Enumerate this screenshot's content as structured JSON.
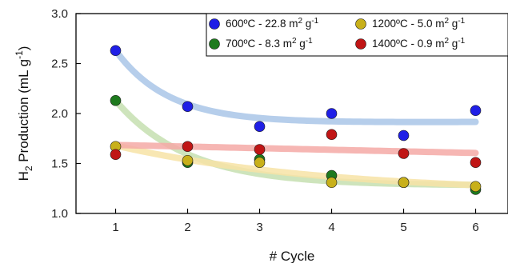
{
  "chart_data": {
    "type": "scatter",
    "xlabel": "# Cycle",
    "ylabel": {
      "main": "H",
      "sub": "2",
      "rest": " Production (mL g",
      "sup": "-1",
      "close": ")"
    },
    "xlim": [
      0.45,
      6.45
    ],
    "ylim": [
      1.0,
      3.0
    ],
    "xticks": [
      "1",
      "2",
      "3",
      "4",
      "5",
      "6"
    ],
    "yticks": [
      "1.0",
      "1.5",
      "2.0",
      "2.5",
      "3.0"
    ],
    "legend_position": "top-right",
    "grid": false,
    "series": [
      {
        "name": "600ºC - 22.8 m² g⁻¹",
        "label_main": "600ºC - 22.8 m",
        "label_sup1": "2",
        "label_mid": " g",
        "label_sup2": "-1",
        "color": "#1f1fe6",
        "fit_color": "#a9c6e8",
        "x": [
          1,
          2,
          3,
          4,
          5,
          6
        ],
        "y": [
          2.63,
          2.07,
          1.87,
          2.0,
          1.78,
          2.03
        ],
        "fit": {
          "a": 1.9,
          "b": 0.73,
          "k": 1.35,
          "m": 0.003
        }
      },
      {
        "name": "700ºC - 8.3 m² g⁻¹",
        "label_main": "700ºC - 8.3 m",
        "label_sup1": "2",
        "label_mid": " g",
        "label_sup2": "-1",
        "color": "#1e7a1e",
        "fit_color": "#c6dfb0",
        "x": [
          1,
          2,
          3,
          4,
          5,
          6
        ],
        "y": [
          2.13,
          1.51,
          1.54,
          1.38,
          1.31,
          1.24
        ],
        "fit": {
          "a": 1.28,
          "b": 0.85,
          "k": 1.0,
          "m": 0.0
        }
      },
      {
        "name": "1200ºC - 5.0 m² g⁻¹",
        "label_main": "1200ºC - 5.0 m",
        "label_sup1": "2",
        "label_mid": " g",
        "label_sup2": "-1",
        "color": "#c8b01a",
        "fit_color": "#f7e3a6",
        "x": [
          1,
          2,
          3,
          4,
          5,
          6
        ],
        "y": [
          1.67,
          1.53,
          1.51,
          1.31,
          1.31,
          1.27
        ],
        "fit": {
          "a": 1.2,
          "b": 0.48,
          "k": 0.35,
          "m": 0.0
        }
      },
      {
        "name": "1400ºC - 0.9 m² g⁻¹",
        "label_main": "1400ºC - 0.9 m",
        "label_sup1": "2",
        "label_mid": " g",
        "label_sup2": "-1",
        "color": "#c01515",
        "fit_color": "#f4a9a6",
        "x": [
          1,
          2,
          3,
          4,
          5,
          6
        ],
        "y": [
          1.59,
          1.67,
          1.64,
          1.79,
          1.6,
          1.51
        ],
        "fit": {
          "a": 1.685,
          "b": 0.0,
          "k": 1.0,
          "m": -0.016
        }
      }
    ]
  }
}
